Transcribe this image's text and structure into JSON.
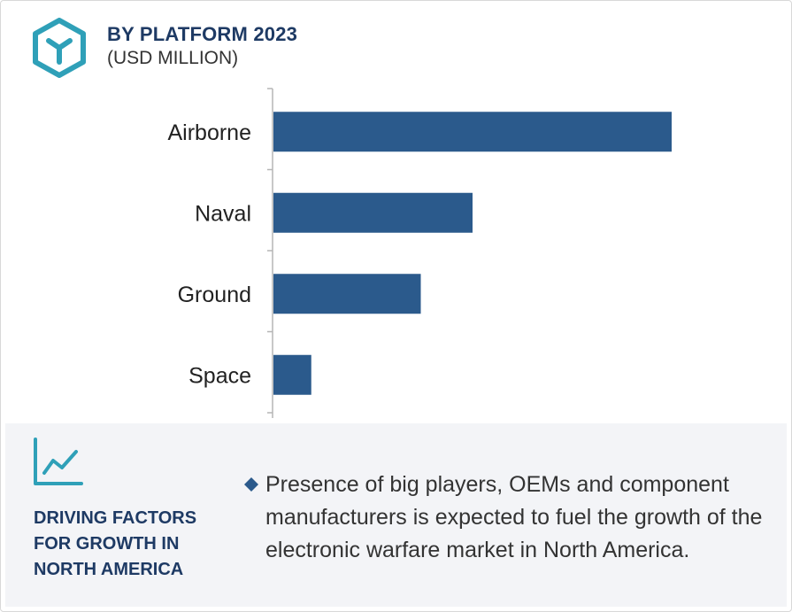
{
  "header": {
    "title": "BY PLATFORM 2023",
    "subtitle": "(USD MILLION)"
  },
  "colors": {
    "bar": "#2b5a8c",
    "accent_teal": "#2fa0b8",
    "heading_navy": "#1e3a64"
  },
  "chart_data": {
    "type": "bar",
    "orientation": "horizontal",
    "title": "BY PLATFORM 2023",
    "subtitle": "(USD MILLION)",
    "categories": [
      "Airborne",
      "Naval",
      "Ground",
      "Space"
    ],
    "values": [
      100,
      50,
      37,
      9.5
    ],
    "xlim": [
      0,
      100
    ],
    "grid": false,
    "legend": "none"
  },
  "driving_factors": {
    "heading": "DRIVING FACTORS FOR GROWTH IN NORTH AMERICA",
    "items": [
      "Presence of big players, OEMs and component manufacturers is expected to fuel the growth of the electronic warfare market in North America."
    ]
  }
}
